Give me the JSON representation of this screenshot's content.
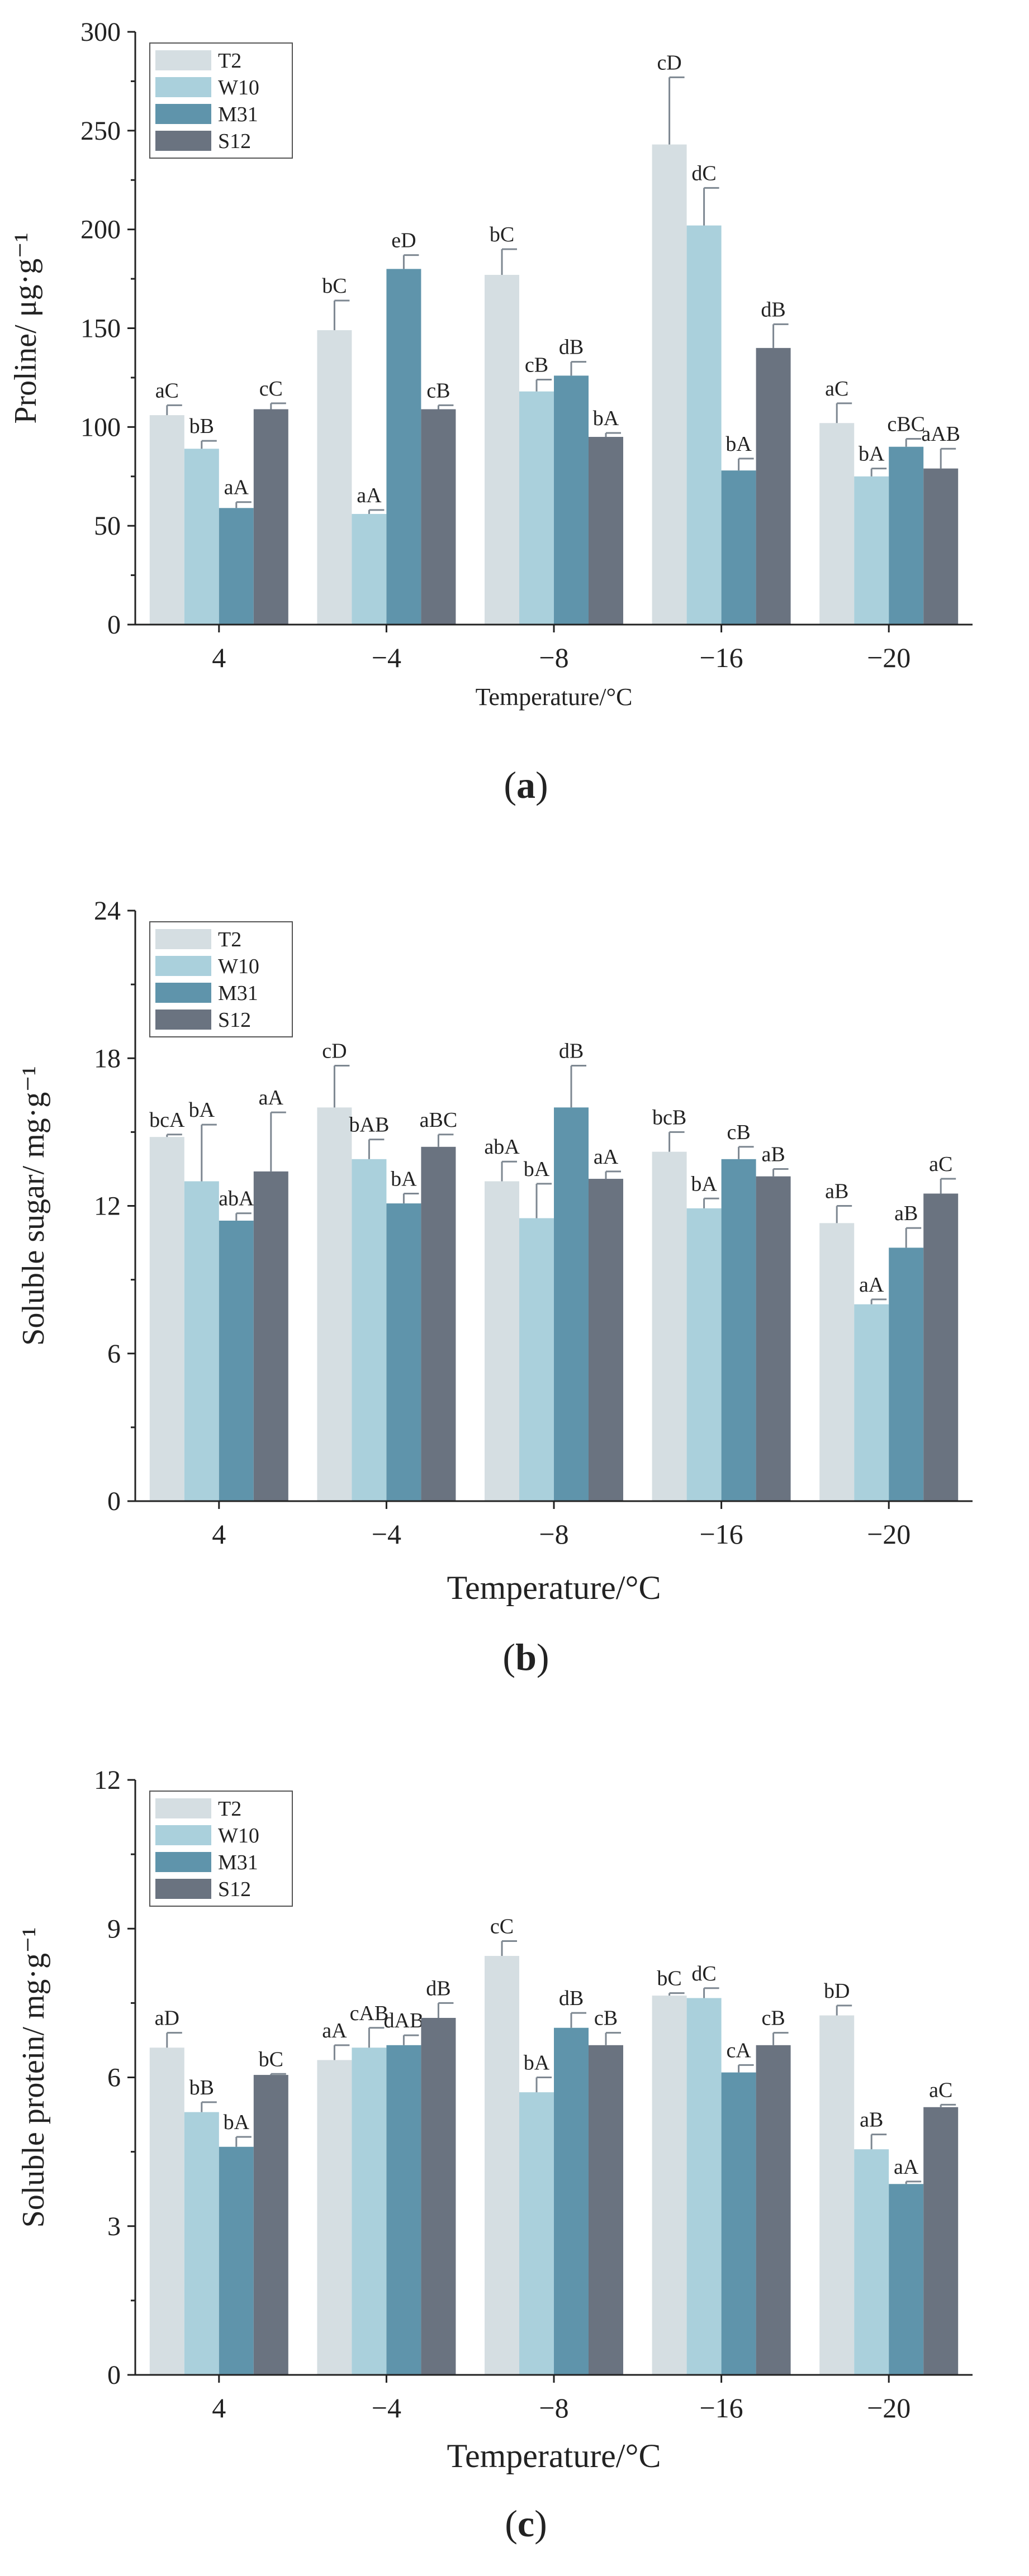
{
  "chart_data": [
    {
      "type": "bar",
      "panel": "a",
      "title": "",
      "xlabel": "Temperature/°C",
      "ylabel": "Proline/ μg·g⁻¹",
      "ylim": [
        0,
        300
      ],
      "yticks": [
        0,
        50,
        100,
        150,
        200,
        250,
        300
      ],
      "categories": [
        "4",
        "−4",
        "−8",
        "−16",
        "−20"
      ],
      "legend_position": "top-left",
      "grid": false,
      "series": [
        {
          "name": "T2",
          "color": "#d5dee2",
          "values": [
            106,
            149,
            177,
            243,
            102
          ],
          "errors": [
            5,
            15,
            13,
            34,
            10
          ],
          "letters": [
            "aC",
            "bC",
            "bC",
            "cD",
            "aC"
          ]
        },
        {
          "name": "W10",
          "color": "#aad0dc",
          "values": [
            89,
            56,
            118,
            202,
            75
          ],
          "errors": [
            4,
            2,
            6,
            19,
            4
          ],
          "letters": [
            "bB",
            "aA",
            "cB",
            "dC",
            "bA"
          ]
        },
        {
          "name": "M31",
          "color": "#5f94ab",
          "values": [
            59,
            180,
            126,
            78,
            90
          ],
          "errors": [
            3,
            7,
            7,
            6,
            4
          ],
          "letters": [
            "aA",
            "eD",
            "dB",
            "bA",
            "cBC"
          ]
        },
        {
          "name": "S12",
          "color": "#6a7380",
          "values": [
            109,
            109,
            95,
            140,
            79
          ],
          "errors": [
            3,
            2,
            2,
            12,
            10
          ],
          "letters": [
            "cC",
            "cB",
            "bA",
            "dB",
            "aAB"
          ]
        }
      ],
      "caption": "a"
    },
    {
      "type": "bar",
      "panel": "b",
      "title": "",
      "xlabel": "Temperature/°C",
      "ylabel": "Soluble sugar/ mg·g⁻¹",
      "ylim": [
        0,
        24
      ],
      "yticks": [
        0,
        6,
        12,
        18,
        24
      ],
      "categories": [
        "4",
        "−4",
        "−8",
        "−16",
        "−20"
      ],
      "legend_position": "top-left",
      "grid": false,
      "series": [
        {
          "name": "T2",
          "color": "#d5dee2",
          "values": [
            14.8,
            16.0,
            13.0,
            14.2,
            11.3
          ],
          "errors": [
            0.1,
            1.7,
            0.8,
            0.8,
            0.7
          ],
          "letters": [
            "bcA",
            "cD",
            "abA",
            "bcB",
            "aB"
          ]
        },
        {
          "name": "W10",
          "color": "#aad0dc",
          "values": [
            13.0,
            13.9,
            11.5,
            11.9,
            8.0
          ],
          "errors": [
            2.3,
            0.8,
            1.4,
            0.4,
            0.2
          ],
          "letters": [
            "bA",
            "bAB",
            "bA",
            "bA",
            "aA"
          ]
        },
        {
          "name": "M31",
          "color": "#5f94ab",
          "values": [
            11.4,
            12.1,
            16.0,
            13.9,
            10.3
          ],
          "errors": [
            0.3,
            0.4,
            1.7,
            0.5,
            0.8
          ],
          "letters": [
            "abA",
            "bA",
            "dB",
            "cB",
            "aB"
          ]
        },
        {
          "name": "S12",
          "color": "#6a7380",
          "values": [
            13.4,
            14.4,
            13.1,
            13.2,
            12.5
          ],
          "errors": [
            2.4,
            0.5,
            0.3,
            0.3,
            0.6
          ],
          "letters": [
            "aA",
            "aBC",
            "aA",
            "aB",
            "aC"
          ]
        }
      ],
      "caption": "b"
    },
    {
      "type": "bar",
      "panel": "c",
      "title": "",
      "xlabel": "Temperature/°C",
      "ylabel": "Soluble protein/ mg·g⁻¹",
      "ylim": [
        0,
        12
      ],
      "yticks": [
        0,
        3,
        6,
        9,
        12
      ],
      "categories": [
        "4",
        "−4",
        "−8",
        "−16",
        "−20"
      ],
      "legend_position": "top-left",
      "grid": false,
      "series": [
        {
          "name": "T2",
          "color": "#d5dee2",
          "values": [
            6.6,
            6.35,
            8.45,
            7.65,
            7.25
          ],
          "errors": [
            0.3,
            0.3,
            0.3,
            0.05,
            0.2
          ],
          "letters": [
            "aD",
            "aA",
            "cC",
            "bC",
            "bD"
          ]
        },
        {
          "name": "W10",
          "color": "#aad0dc",
          "values": [
            5.3,
            6.6,
            5.7,
            7.6,
            4.55
          ],
          "errors": [
            0.2,
            0.4,
            0.3,
            0.2,
            0.3
          ],
          "letters": [
            "bB",
            "cAB",
            "bA",
            "dC",
            "aB"
          ]
        },
        {
          "name": "M31",
          "color": "#5f94ab",
          "values": [
            4.6,
            6.65,
            7.0,
            6.1,
            3.85
          ],
          "errors": [
            0.2,
            0.2,
            0.3,
            0.15,
            0.05
          ],
          "letters": [
            "bA",
            "dAB",
            "dB",
            "cA",
            "aA"
          ]
        },
        {
          "name": "S12",
          "color": "#6a7380",
          "values": [
            6.05,
            7.2,
            6.65,
            6.65,
            5.4
          ],
          "errors": [
            0.02,
            0.3,
            0.25,
            0.25,
            0.05
          ],
          "letters": [
            "bC",
            "dB",
            "cB",
            "cB",
            "aC"
          ]
        }
      ],
      "caption": "c"
    }
  ]
}
